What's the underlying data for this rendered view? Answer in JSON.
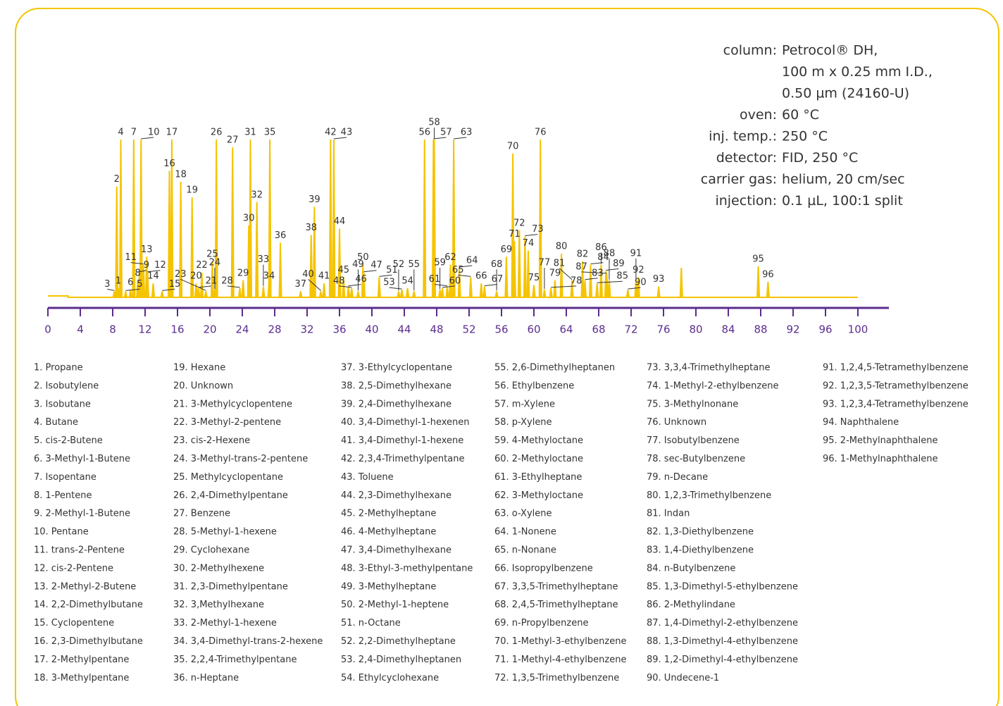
{
  "chart_data": {
    "type": "chromatogram",
    "color": "#f5c400",
    "axis_color": "#5b2d8e",
    "xlim": [
      0,
      100
    ],
    "ylim": [
      0,
      100
    ],
    "xticks": [
      0,
      4,
      8,
      12,
      16,
      20,
      24,
      28,
      32,
      36,
      40,
      44,
      48,
      52,
      56,
      60,
      64,
      68,
      72,
      76,
      80,
      84,
      88,
      92,
      96,
      100
    ],
    "peaks": {
      "labels": [
        "1",
        "2",
        "3",
        "4",
        "5",
        "6",
        "7",
        "8",
        "9",
        "10",
        "11",
        "12",
        "13",
        "14",
        "15",
        "16",
        "17",
        "18",
        "19",
        "20",
        "21",
        "22",
        "23",
        "24",
        "25",
        "26",
        "27",
        "28",
        "29",
        "30",
        "31",
        "32",
        "33",
        "34",
        "35",
        "36",
        "37",
        "38",
        "39",
        "40",
        "41",
        "42",
        "43",
        "44",
        "45",
        "46",
        "47",
        "48",
        "49",
        "50",
        "51",
        "52",
        "53",
        "54",
        "55",
        "56",
        "57",
        "58",
        "59",
        "60",
        "61",
        "62",
        "63",
        "64",
        "65",
        "66",
        "67",
        "68",
        "69",
        "70",
        "71",
        "72",
        "73",
        "74",
        "75",
        "76",
        "77",
        "78",
        "79",
        "80",
        "81",
        "82",
        "83",
        "84",
        "85",
        "86",
        "87",
        "88",
        "89",
        "90",
        "91",
        "92",
        "93",
        null,
        "95",
        "96"
      ],
      "x": [
        8.7,
        8.5,
        8.2,
        9.0,
        9.6,
        10.2,
        10.6,
        11.1,
        11.3,
        11.5,
        11.8,
        12.3,
        12.2,
        13.0,
        14.1,
        15.0,
        15.3,
        16.4,
        17.8,
        18.3,
        18.6,
        19.0,
        19.5,
        20.6,
        20.3,
        20.8,
        22.8,
        23.7,
        24.1,
        24.8,
        25.0,
        25.8,
        26.6,
        27.3,
        27.4,
        28.7,
        31.2,
        32.5,
        32.9,
        33.7,
        34.1,
        34.9,
        35.3,
        36.0,
        36.5,
        37.1,
        39.0,
        37.5,
        38.3,
        38.9,
        40.9,
        43.3,
        43.7,
        44.4,
        45.2,
        46.5,
        47.6,
        47.7,
        48.4,
        48.7,
        49.3,
        49.7,
        50.1,
        50.8,
        52.2,
        53.5,
        53.9,
        55.4,
        56.6,
        57.4,
        57.6,
        58.2,
        58.9,
        59.3,
        60.0,
        60.8,
        61.3,
        62.1,
        62.6,
        63.4,
        64.7,
        66.0,
        66.3,
        67.0,
        67.8,
        68.3,
        69.0,
        69.3,
        68.9,
        71.6,
        72.6,
        72.9,
        75.4,
        78.2,
        87.7,
        88.9
      ],
      "heights": [
        5,
        70,
        3,
        100,
        3,
        4,
        100,
        10,
        15,
        100,
        20,
        15,
        25,
        8,
        3,
        80,
        100,
        73,
        63,
        8,
        5,
        15,
        3,
        4,
        22,
        100,
        95,
        5,
        10,
        45,
        100,
        60,
        6,
        8,
        100,
        34,
        3,
        39,
        57,
        3,
        8,
        100,
        100,
        43,
        12,
        6,
        15,
        5,
        3,
        20,
        12,
        3,
        4,
        5,
        3,
        100,
        100,
        100,
        4,
        5,
        6,
        20,
        100,
        18,
        12,
        8,
        6,
        3,
        25,
        91,
        35,
        42,
        38,
        29,
        7,
        100,
        4,
        5,
        10,
        27,
        10,
        22,
        10,
        20,
        8,
        20,
        14,
        10,
        16,
        4,
        10,
        12,
        6,
        18,
        19,
        9
      ]
    },
    "conditions": [
      {
        "key": "column:",
        "value": [
          "Petrocol® DH,",
          "100 m x 0.25 mm I.D.,",
          "0.50 µm (24160-U)"
        ]
      },
      {
        "key": "oven:",
        "value": [
          "60 °C"
        ]
      },
      {
        "key": "inj. temp.:",
        "value": [
          "250 °C"
        ]
      },
      {
        "key": "detector:",
        "value": [
          "FID, 250 °C"
        ]
      },
      {
        "key": "carrier gas:",
        "value": [
          "helium, 20 cm/sec"
        ]
      },
      {
        "key": "injection:",
        "value": [
          "0.1 µL, 100:1 split"
        ]
      }
    ],
    "legend": [
      "1. Propane",
      "2. Isobutylene",
      "3. Isobutane",
      "4. Butane",
      "5. cis-2-Butene",
      "6. 3-Methyl-1-Butene",
      "7. Isopentane",
      "8. 1-Pentene",
      "9. 2-Methyl-1-Butene",
      "10. Pentane",
      "11. trans-2-Pentene",
      "12. cis-2-Pentene",
      "13. 2-Methyl-2-Butene",
      "14. 2,2-Dimethylbutane",
      "15. Cyclopentene",
      "16. 2,3-Dimethylbutane",
      "17. 2-Methylpentane",
      "18. 3-Methylpentane",
      "19. Hexane",
      "20. Unknown",
      "21. 3-Methylcyclopentene",
      "22. 3-Methyl-2-pentene",
      "23. cis-2-Hexene",
      "24. 3-Methyl-trans-2-pentene",
      "25. Methylcyclopentane",
      "26. 2,4-Dimethylpentane",
      "27. Benzene",
      "28. 5-Methyl-1-hexene",
      "29. Cyclohexane",
      "30. 2-Methylhexene",
      "31. 2,3-Dimethylpentane",
      "32. 3,Methylhexane",
      "33. 2-Methyl-1-hexene",
      "34. 3,4-Dimethyl-trans-2-hexene",
      "35. 2,2,4-Trimethylpentane",
      "36. n-Heptane",
      "37. 3-Ethylcyclopentane",
      "38. 2,5-Dimethylhexane",
      "39. 2,4-Dimethylhexane",
      "40. 3,4-Dimethyl-1-hexenen",
      "41. 3,4-Dimethyl-1-hexene",
      "42. 2,3,4-Trimethylpentane",
      "43. Toluene",
      "44. 2,3-Dimethylhexane",
      "45. 2-Methylheptane",
      "46. 4-Methylheptane",
      "47. 3,4-Dimethylhexane",
      "48. 3-Ethyl-3-methylpentane",
      "49. 3-Methylheptane",
      "50. 2-Methyl-1-heptene",
      "51. n-Octane",
      "52. 2,2-Dimethylheptane",
      "53. 2,4-Dimethylheptanen",
      "54. Ethylcyclohexane",
      "55. 2,6-Dimethylheptanen",
      "56. Ethylbenzene",
      "57. m-Xylene",
      "58. p-Xylene",
      "59. 4-Methyloctane",
      "60. 2-Methyloctane",
      "61. 3-Ethylheptane",
      "62. 3-Methyloctane",
      "63. o-Xylene",
      "64. 1-Nonene",
      "65. n-Nonane",
      "66. Isopropylbenzene",
      "67. 3,3,5-Trimethylheptane",
      "68. 2,4,5-Trimethylheptane",
      "69. n-Propylbenzene",
      "70. 1-Methyl-3-ethylbenzene",
      "71. 1-Methyl-4-ethylbenzene",
      "72. 1,3,5-Trimethylbenzene",
      "73. 3,3,4-Trimethylheptane",
      "74. 1-Methyl-2-ethylbenzene",
      "75. 3-Methylnonane",
      "76. Unknown",
      "77. Isobutylbenzene",
      "78. sec-Butylbenzene",
      "79. n-Decane",
      "80. 1,2,3-Trimethylbenzene",
      "81. Indan",
      "82. 1,3-Diethylbenzene",
      "83. 1,4-Diethylbenzene",
      "84. n-Butylbenzene",
      "85. 1,3-Dimethyl-5-ethylbenzene",
      "86. 2-Methylindane",
      "87. 1,4-Dimethyl-2-ethylbenzene",
      "88. 1,3-Dimethyl-4-ethylbenzene",
      "89. 1,2-Dimethyl-4-ethylbenzene",
      "90. Undecene-1",
      "91. 1,2,4,5-Tetramethylbenzene",
      "92. 1,2,3,5-Tetramethylbenzene",
      "93. 1,2,3,4-Tetramethylbenzene",
      "94. Naphthalene",
      "95. 2-Methylnaphthalene",
      "96. 1-Methylnaphthalene"
    ]
  }
}
